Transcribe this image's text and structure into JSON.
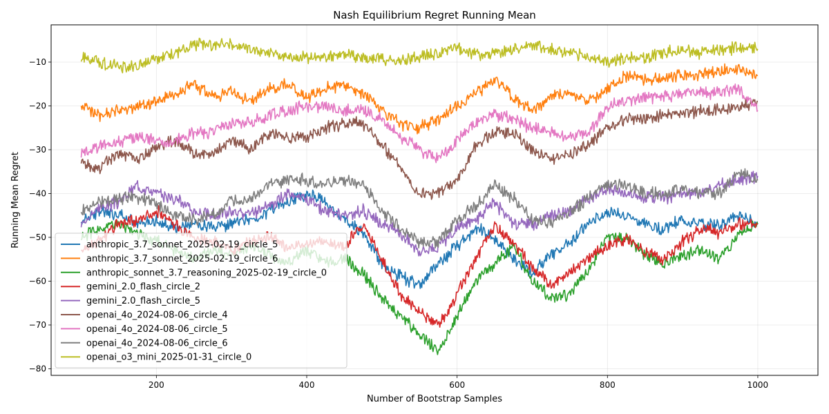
{
  "chart_data": {
    "type": "line",
    "title": "Nash Equilibrium Regret Running Mean",
    "xlabel": "Number of Bootstrap Samples",
    "ylabel": "Running Mean Regret",
    "xlim": [
      60,
      1080
    ],
    "ylim": [
      -81.5,
      -1.5
    ],
    "xticks": [
      200,
      400,
      600,
      800,
      1000
    ],
    "xtick_labels": [
      "200",
      "400",
      "600",
      "800",
      "1000"
    ],
    "yticks": [
      -80,
      -70,
      -60,
      -50,
      -40,
      -30,
      -20,
      -10
    ],
    "ytick_labels": [
      "−80",
      "−70",
      "−60",
      "−50",
      "−40",
      "−30",
      "−20",
      "−10"
    ],
    "grid": true,
    "legend_position": "lower-left",
    "x": [
      100,
      125,
      150,
      175,
      200,
      225,
      250,
      275,
      300,
      325,
      350,
      375,
      400,
      425,
      450,
      475,
      500,
      525,
      550,
      575,
      600,
      625,
      650,
      675,
      700,
      725,
      750,
      775,
      800,
      825,
      850,
      875,
      900,
      925,
      950,
      975,
      1000
    ],
    "series": [
      {
        "name": "anthropic_3.7_sonnet_2025-02-19_circle_5",
        "color": "#1f77b4",
        "values": [
          -46,
          -44,
          -45,
          -47,
          -46,
          -48,
          -47,
          -48,
          -47,
          -46,
          -44,
          -42,
          -40,
          -42,
          -46,
          -49,
          -56,
          -59,
          -61,
          -56,
          -52,
          -48,
          -50,
          -55,
          -58,
          -54,
          -51,
          -47,
          -44,
          -45,
          -47,
          -48,
          -46,
          -47,
          -47,
          -45,
          -47
        ]
      },
      {
        "name": "anthropic_3.7_sonnet_2025-02-19_circle_6",
        "color": "#ff7f0e",
        "values": [
          -20,
          -22,
          -21,
          -20,
          -19,
          -17,
          -15,
          -18,
          -17,
          -19,
          -16,
          -15,
          -18,
          -16,
          -15,
          -17,
          -21,
          -24,
          -25,
          -23,
          -20,
          -17,
          -14,
          -18,
          -21,
          -18,
          -17,
          -19,
          -16,
          -13,
          -14,
          -14,
          -13,
          -13,
          -12,
          -12,
          -13
        ]
      },
      {
        "name": "anthropic_sonnet_3.7_reasoning_2025-02-19_circle_0",
        "color": "#2ca02c",
        "values": [
          -50,
          -48,
          -47,
          -49,
          -51,
          -53,
          -55,
          -53,
          -54,
          -52,
          -54,
          -56,
          -53,
          -56,
          -55,
          -58,
          -64,
          -68,
          -72,
          -76,
          -68,
          -60,
          -56,
          -52,
          -60,
          -64,
          -63,
          -57,
          -50,
          -50,
          -54,
          -56,
          -54,
          -53,
          -55,
          -49,
          -47
        ]
      },
      {
        "name": "gemini_2.0_flash_circle_2",
        "color": "#d62728",
        "values": [
          -53,
          -51,
          -47,
          -46,
          -44,
          -47,
          -50,
          -51,
          -53,
          -51,
          -50,
          -52,
          -52,
          -51,
          -52,
          -47,
          -55,
          -63,
          -67,
          -70,
          -63,
          -55,
          -47,
          -51,
          -57,
          -61,
          -58,
          -55,
          -52,
          -50,
          -53,
          -55,
          -51,
          -48,
          -49,
          -47,
          -47
        ]
      },
      {
        "name": "gemini_2.0_flash_circle_5",
        "color": "#9467bd",
        "values": [
          -47,
          -43,
          -42,
          -38,
          -40,
          -41,
          -44,
          -45,
          -44,
          -45,
          -43,
          -40,
          -41,
          -44,
          -45,
          -44,
          -47,
          -49,
          -53,
          -52,
          -48,
          -46,
          -42,
          -47,
          -47,
          -45,
          -44,
          -41,
          -39,
          -40,
          -41,
          -41,
          -40,
          -40,
          -38,
          -37,
          -36
        ]
      },
      {
        "name": "openai_4o_2024-08-06_circle_4",
        "color": "#8c564b",
        "values": [
          -33,
          -34,
          -31,
          -32,
          -29,
          -28,
          -31,
          -31,
          -28,
          -30,
          -26,
          -27,
          -27,
          -25,
          -24,
          -24,
          -29,
          -34,
          -40,
          -40,
          -37,
          -29,
          -26,
          -26,
          -30,
          -32,
          -31,
          -29,
          -25,
          -23,
          -23,
          -22,
          -22,
          -21,
          -21,
          -20,
          -19
        ]
      },
      {
        "name": "openai_4o_2024-08-06_circle_5",
        "color": "#e377c2",
        "values": [
          -31,
          -29,
          -28,
          -27,
          -28,
          -28,
          -26,
          -26,
          -24,
          -24,
          -22,
          -21,
          -20,
          -20,
          -21,
          -21,
          -23,
          -27,
          -30,
          -32,
          -28,
          -24,
          -22,
          -23,
          -25,
          -26,
          -27,
          -26,
          -20,
          -19,
          -18,
          -18,
          -17,
          -17,
          -17,
          -16,
          -21
        ]
      },
      {
        "name": "openai_4o_2024-08-06_circle_6",
        "color": "#7f7f7f",
        "values": [
          -44,
          -42,
          -41,
          -41,
          -42,
          -45,
          -46,
          -45,
          -42,
          -41,
          -38,
          -37,
          -37,
          -38,
          -37,
          -38,
          -44,
          -48,
          -51,
          -51,
          -46,
          -43,
          -38,
          -41,
          -46,
          -47,
          -44,
          -41,
          -38,
          -38,
          -40,
          -40,
          -39,
          -40,
          -40,
          -35,
          -37
        ]
      },
      {
        "name": "openai_o3_mini_2025-01-31_circle_0",
        "color": "#bcbd22",
        "values": [
          -9,
          -10,
          -11,
          -11,
          -9,
          -8,
          -6,
          -6,
          -6,
          -7,
          -8,
          -9,
          -9,
          -9,
          -8,
          -9,
          -9,
          -10,
          -9,
          -8,
          -7,
          -8,
          -8,
          -7,
          -6,
          -7,
          -8,
          -9,
          -10,
          -9,
          -9,
          -8,
          -7,
          -8,
          -7,
          -7,
          -7
        ]
      }
    ]
  }
}
